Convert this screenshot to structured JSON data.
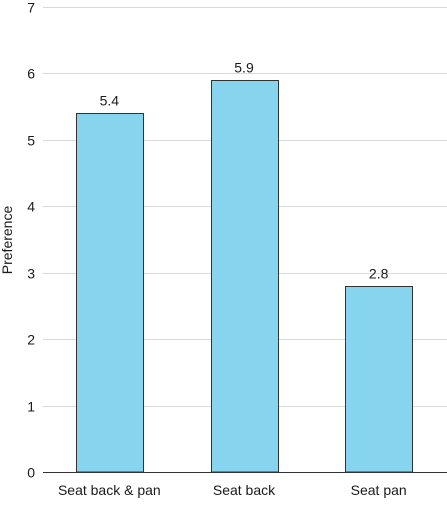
{
  "chart_data": {
    "type": "bar",
    "categories": [
      "Seat back & pan",
      "Seat back",
      "Seat pan"
    ],
    "values": [
      5.4,
      5.9,
      2.8
    ],
    "data_labels": [
      "5.4",
      "5.9",
      "2.8"
    ],
    "title": "",
    "xlabel": "",
    "ylabel": "Preference",
    "ylim": [
      0,
      7
    ],
    "yticks": [
      0,
      1,
      2,
      3,
      4,
      5,
      6,
      7
    ],
    "ytick_labels": [
      "0",
      "1",
      "2",
      "3",
      "4",
      "5",
      "6",
      "7"
    ],
    "grid": true,
    "legend": "none",
    "bar_color": "#87d4ee",
    "bar_edge_color": "#333333",
    "grid_color": "#d9d9d9",
    "axis_color": "#333333"
  }
}
